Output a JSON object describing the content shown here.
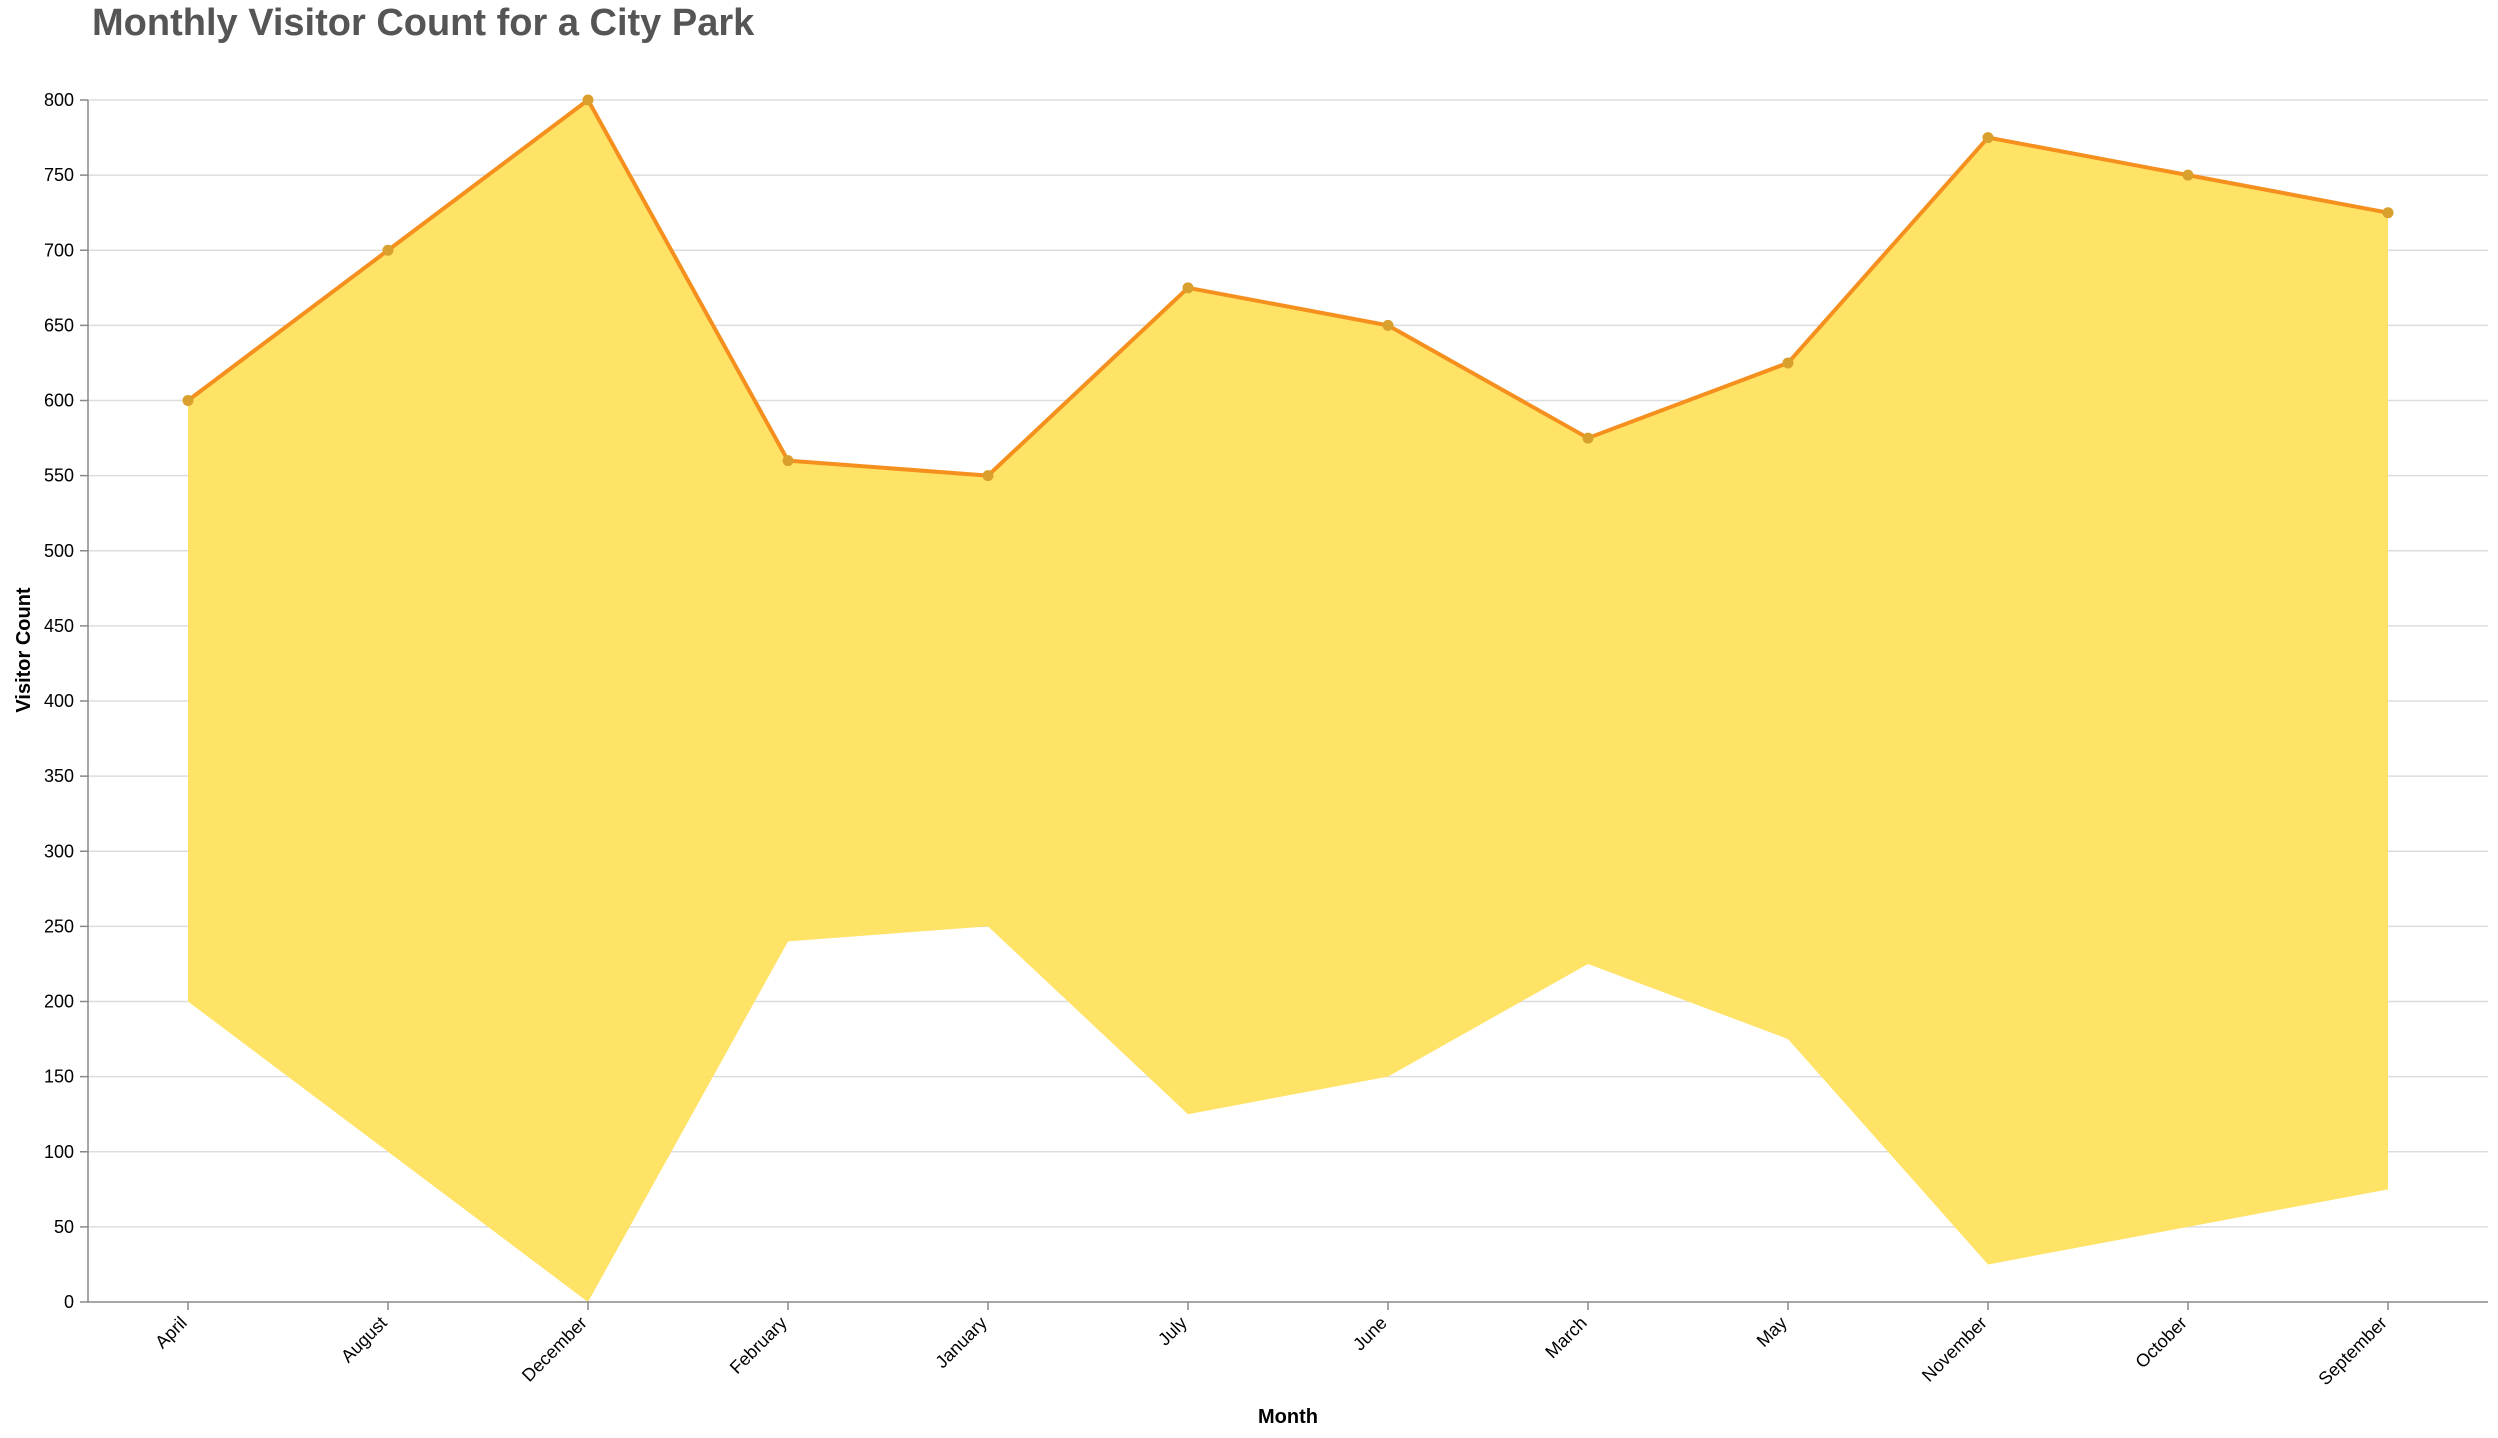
{
  "chart_data": {
    "type": "area",
    "title": "Monthly Visitor Count for a City Park",
    "xlabel": "Month",
    "ylabel": "Visitor Count",
    "ylim": [
      0,
      800
    ],
    "yticks": [
      0,
      50,
      100,
      150,
      200,
      250,
      300,
      350,
      400,
      450,
      500,
      550,
      600,
      650,
      700,
      750,
      800
    ],
    "grid": true,
    "categories": [
      "April",
      "August",
      "December",
      "February",
      "January",
      "July",
      "June",
      "March",
      "May",
      "November",
      "October",
      "September"
    ],
    "series": [
      {
        "role": "range-low",
        "values": [
          200,
          100,
          0,
          240,
          250,
          125,
          150,
          225,
          175,
          25,
          50,
          75
        ]
      },
      {
        "role": "range-high",
        "values": [
          600,
          700,
          800,
          560,
          550,
          675,
          650,
          575,
          625,
          775,
          750,
          725
        ]
      }
    ],
    "colors": {
      "band": "#FFE25E",
      "line": "#F58F1E",
      "point": "#D9A02D",
      "title": "#555555"
    }
  }
}
